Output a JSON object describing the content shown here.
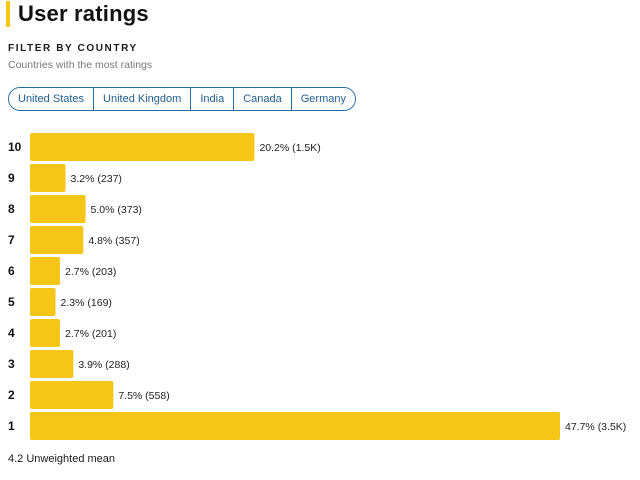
{
  "page": {
    "title": "User ratings",
    "filter_label": "FILTER BY COUNTRY",
    "filter_subtitle": "Countries with the most ratings",
    "countries": [
      "United States",
      "United Kingdom",
      "India",
      "Canada",
      "Germany"
    ],
    "mean_text": "4.2 Unweighted mean",
    "accent_color": "#f5c518",
    "chip_color": "#1f6fa8"
  },
  "chart_data": {
    "type": "bar",
    "orientation": "horizontal",
    "categories": [
      "10",
      "9",
      "8",
      "7",
      "6",
      "5",
      "4",
      "3",
      "2",
      "1"
    ],
    "values": [
      20.2,
      3.2,
      5.0,
      4.8,
      2.7,
      2.3,
      2.7,
      3.9,
      7.5,
      47.7
    ],
    "labels": [
      "20.2% (1.5K)",
      "3.2% (237)",
      "5.0% (373)",
      "4.8% (357)",
      "2.7% (203)",
      "2.3% (169)",
      "2.7% (201)",
      "3.9% (288)",
      "7.5% (558)",
      "47.7% (3.5K)"
    ],
    "title": "",
    "xlabel": "",
    "ylabel": "",
    "bar_color": "#f5c518",
    "grid": false,
    "legend": "none"
  }
}
